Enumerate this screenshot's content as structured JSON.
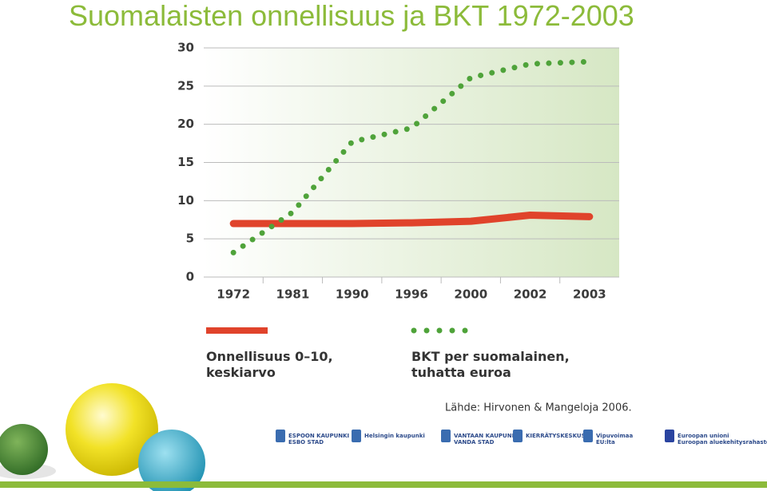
{
  "chart_data": {
    "type": "line",
    "title": "Suomalaisten onnellisuus ja BKT 1972-2003",
    "categories": [
      "1972",
      "1981",
      "1990",
      "1996",
      "2000",
      "2002",
      "2003"
    ],
    "series": [
      {
        "name": "Onnellisuus 0–10,\nkeskiarvo",
        "color": "#e0432b",
        "style": "solid",
        "values": [
          7.0,
          7.0,
          7.0,
          7.1,
          7.3,
          8.1,
          7.9
        ]
      },
      {
        "name": "BKT per suomalainen,\ntuhatta euroa",
        "color": "#4fa33a",
        "style": "dotted",
        "values": [
          3.2,
          8.5,
          17.7,
          19.5,
          26.1,
          27.9,
          28.2
        ]
      }
    ],
    "ylim": [
      0,
      30
    ],
    "yticks": [
      0,
      5,
      10,
      15,
      20,
      25,
      30
    ],
    "grid": true,
    "source": "Lähde: Hirvonen & Mangeloja 2006."
  },
  "logos": [
    "ESPOON KAUPUNKI\nESBO STAD",
    "Helsingin kaupunki",
    "VANTAAN KAUPUNKI\nVANDA STAD",
    "KIERRÄTYSKESKUS",
    "Vipuvoimaa\nEU:lta",
    "Euroopan unioni\nEuroopan aluekehitysrahasto"
  ]
}
